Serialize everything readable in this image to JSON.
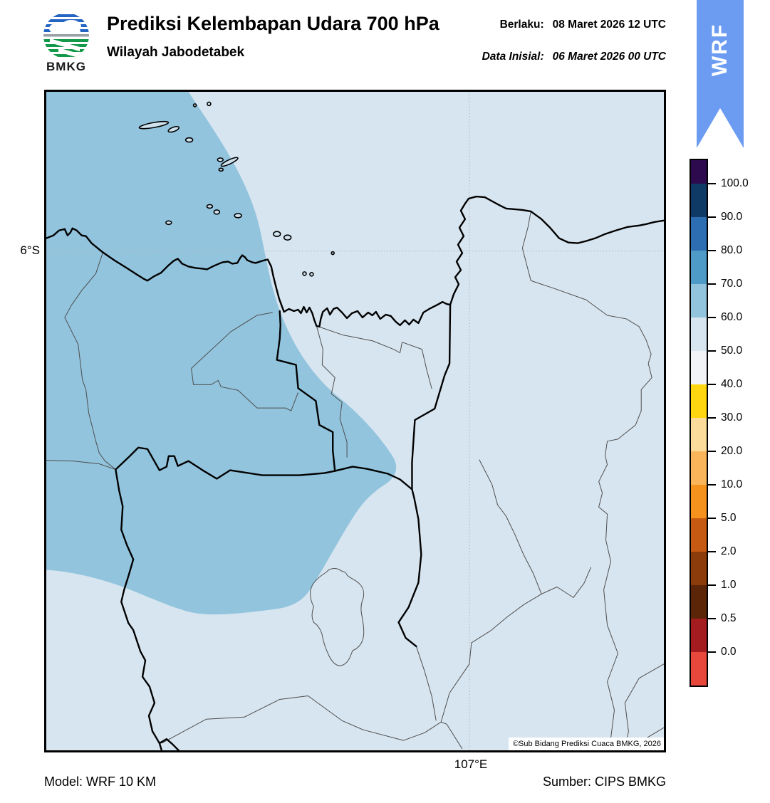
{
  "header": {
    "logo_text": "BMKG",
    "title": "Prediksi Kelembapan Udara 700 hPa",
    "subtitle": "Wilayah Jabodetabek",
    "valid_label": "Berlaku:",
    "valid_value": "08 Maret 2026 12 UTC",
    "init_label": "Data Inisial:",
    "init_value": "06 Maret 2026 00 UTC",
    "ribbon_label": "WRF"
  },
  "map": {
    "ylabel": "6°S",
    "xlabel": "107°E",
    "copyright": "©Sub Bidang Prediksi Cuaca BMKG, 2026"
  },
  "colors": {
    "ribbon": "#6C9CF2",
    "humidity_50_60": "#D7E5F0",
    "humidity_60_70": "#92C4DD"
  },
  "colorbar": {
    "labels": [
      "100.0",
      "90.0",
      "80.0",
      "70.0",
      "60.0",
      "50.0",
      "40.0",
      "30.0",
      "20.0",
      "10.0",
      "5.0",
      "2.0",
      "1.0",
      "0.5",
      "0.0"
    ],
    "colors_top_to_bottom": [
      "#2C0A4D",
      "#0F3A66",
      "#2D6DB2",
      "#4E9BC8",
      "#92C4DD",
      "#D7E5F0",
      "#F2F3F6",
      "#FFD60F",
      "#FBDC9B",
      "#FAB55B",
      "#F5921E",
      "#C75A12",
      "#8C3B0A",
      "#5C2508",
      "#A51C20",
      "#E8473B"
    ]
  },
  "footer": {
    "model": "Model: WRF 10 KM",
    "source": "Sumber: CIPS BMKG"
  },
  "chart_data": {
    "type": "heatmap",
    "title": "Prediksi Kelembapan Udara 700 hPa",
    "region": "Wilayah Jabodetabek",
    "valid_time": "08 Maret 2026 12 UTC",
    "initial_time": "06 Maret 2026 00 UTC",
    "unit": "%",
    "scale_ticks": [
      100.0,
      90.0,
      80.0,
      70.0,
      60.0,
      50.0,
      40.0,
      30.0,
      20.0,
      10.0,
      5.0,
      2.0,
      1.0,
      0.5,
      0.0
    ],
    "visible_values": [
      {
        "range": [
          50,
          60
        ],
        "color": "#D7E5F0",
        "area": "eastern half, south and northeast sea of the map"
      },
      {
        "range": [
          60,
          70
        ],
        "color": "#92C4DD",
        "area": "northwest sea and a tongue reaching the map center"
      }
    ],
    "gridlines": {
      "lat": "6°S",
      "lon": "107°E"
    },
    "legend_position": "right vertical colorbar"
  }
}
